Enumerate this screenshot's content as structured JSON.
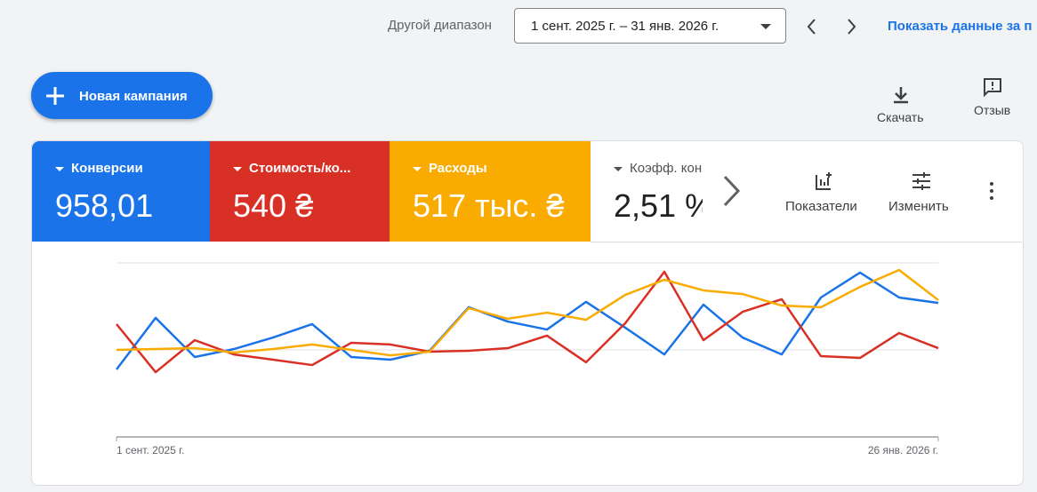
{
  "header": {
    "range_label": "Другой диапазон",
    "date_range": "1 сент. 2025 г. – 31 янв. 2026 г.",
    "show_data_link": "Показать данные за п"
  },
  "toolbar": {
    "new_campaign": "Новая кампания",
    "download": "Скачать",
    "feedback": "Отзыв"
  },
  "metrics": [
    {
      "value": "958,01"
    },
    {
      "value": "540 ₴"
    },
    {
      "value": "517 тыс. ₴"
    },
    {
      "title": "Коэфф. конвер...",
      "value": "2,51 %"
    }
  ],
  "actions": {
    "metrics": "Показатели",
    "edit": "Изменить"
  },
  "chart_data": {
    "type": "line",
    "categories": [
      "1 сент. 2025 г.",
      null,
      null,
      null,
      null,
      null,
      null,
      null,
      null,
      null,
      null,
      null,
      null,
      null,
      null,
      null,
      null,
      null,
      null,
      null,
      null,
      "26 янв. 2026 г."
    ],
    "series": [
      {
        "name": "Конверсии",
        "color": "#1a73e8",
        "values": [
          38.8,
          68.4,
          45.9,
          50.5,
          57.1,
          64.8,
          45.9,
          44.4,
          49.5,
          74.5,
          66.3,
          61.7,
          77.6,
          62.8,
          47.4,
          76.0,
          57.1,
          47.4,
          80.1,
          94.4,
          80.1,
          77.0
        ]
      },
      {
        "name": "Стоимость/ко...",
        "color": "#d93025",
        "values": [
          64.8,
          37.2,
          55.6,
          47.4,
          44.4,
          41.3,
          54.1,
          53.1,
          49.0,
          49.5,
          51.0,
          58.2,
          42.9,
          65.3,
          94.9,
          55.6,
          71.9,
          79.1,
          46.4,
          45.4,
          59.7,
          51.0
        ]
      },
      {
        "name": "Расходы",
        "color": "#f9ab00",
        "values": [
          50.0,
          50.5,
          51.0,
          48.5,
          50.5,
          53.1,
          50.0,
          46.9,
          49.0,
          74.0,
          67.9,
          71.4,
          67.3,
          81.6,
          90.3,
          84.2,
          82.1,
          75.5,
          74.5,
          86.2,
          95.9,
          78.6
        ]
      }
    ],
    "ylim": [
      0,
      100
    ],
    "gridlines": [
      50,
      100
    ]
  }
}
